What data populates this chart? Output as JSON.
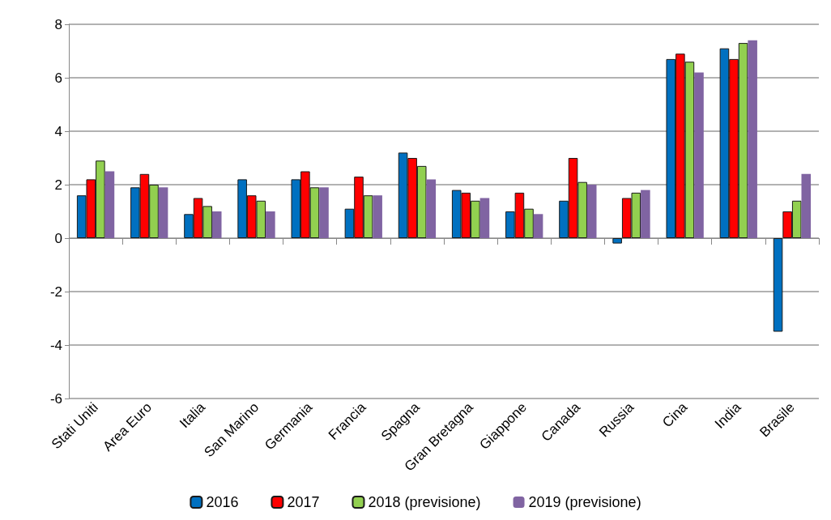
{
  "chart_data": {
    "type": "bar",
    "categories": [
      "Stati Uniti",
      "Area Euro",
      "Italia",
      "San Marino",
      "Germania",
      "Francia",
      "Spagna",
      "Gran Bretagna",
      "Giappone",
      "Canada",
      "Russia",
      "Cina",
      "India",
      "Brasile"
    ],
    "series": [
      {
        "name": "2016",
        "color": "#0070c0",
        "values": [
          1.6,
          1.9,
          0.9,
          2.2,
          2.2,
          1.1,
          3.2,
          1.8,
          1.0,
          1.4,
          -0.2,
          6.7,
          7.1,
          -3.5
        ]
      },
      {
        "name": "2017",
        "color": "#ff0000",
        "values": [
          2.2,
          2.4,
          1.5,
          1.6,
          2.5,
          2.3,
          3.0,
          1.7,
          1.7,
          3.0,
          1.5,
          6.9,
          6.7,
          1.0
        ]
      },
      {
        "name": "2018 (previsione)",
        "color": "#92d050",
        "values": [
          2.9,
          2.0,
          1.2,
          1.4,
          1.9,
          1.6,
          2.7,
          1.4,
          1.1,
          2.1,
          1.7,
          6.6,
          7.3,
          1.4
        ]
      },
      {
        "name": "2019 (previsione)",
        "color": "#8064a2",
        "values": [
          2.5,
          1.9,
          1.0,
          1.0,
          1.9,
          1.6,
          2.2,
          1.5,
          0.9,
          2.0,
          1.8,
          6.2,
          7.4,
          2.4
        ]
      }
    ],
    "ylim": [
      -6,
      8
    ],
    "yticks": [
      -6,
      -4,
      -2,
      0,
      2,
      4,
      6,
      8
    ],
    "grid": "y",
    "legend": "bottom"
  }
}
